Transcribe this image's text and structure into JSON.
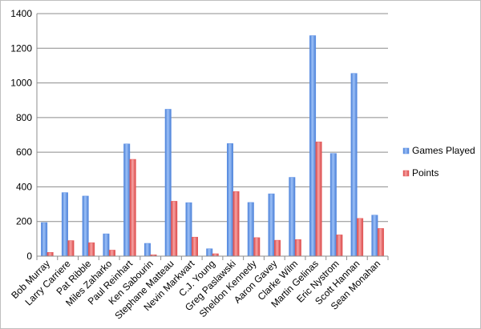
{
  "chart_data": {
    "type": "bar",
    "categories": [
      "Bob Murray",
      "Larry Carriere",
      "Pat Ribble",
      "Miles Zaharko",
      "Paul Reinhart",
      "Ken Sabourin",
      "Stephane Matteau",
      "Nevin Markwart",
      "C.J. Young",
      "Greg Paslawski",
      "Sheldon Kennedy",
      "Aaron Gavey",
      "Clarke Wilm",
      "Martin Gelinas",
      "Eric Nystrom",
      "Scott Hannan",
      "Sean Monahan"
    ],
    "series": [
      {
        "name": "Games Played",
        "color": "#5b8fe6",
        "values": [
          194,
          367,
          347,
          129,
          648,
          74,
          848,
          309,
          43,
          650,
          310,
          360,
          455,
          1273,
          593,
          1055,
          237
        ]
      },
      {
        "name": "Points",
        "color": "#e85a5a",
        "values": [
          22,
          90,
          78,
          35,
          559,
          8,
          317,
          110,
          14,
          373,
          107,
          92,
          96,
          660,
          123,
          218,
          160
        ]
      }
    ],
    "ylim": [
      0,
      1400
    ],
    "yticks": [
      "0",
      "200",
      "400",
      "600",
      "800",
      "1000",
      "1200",
      "1400"
    ],
    "grid": true,
    "legend_position": "right"
  }
}
